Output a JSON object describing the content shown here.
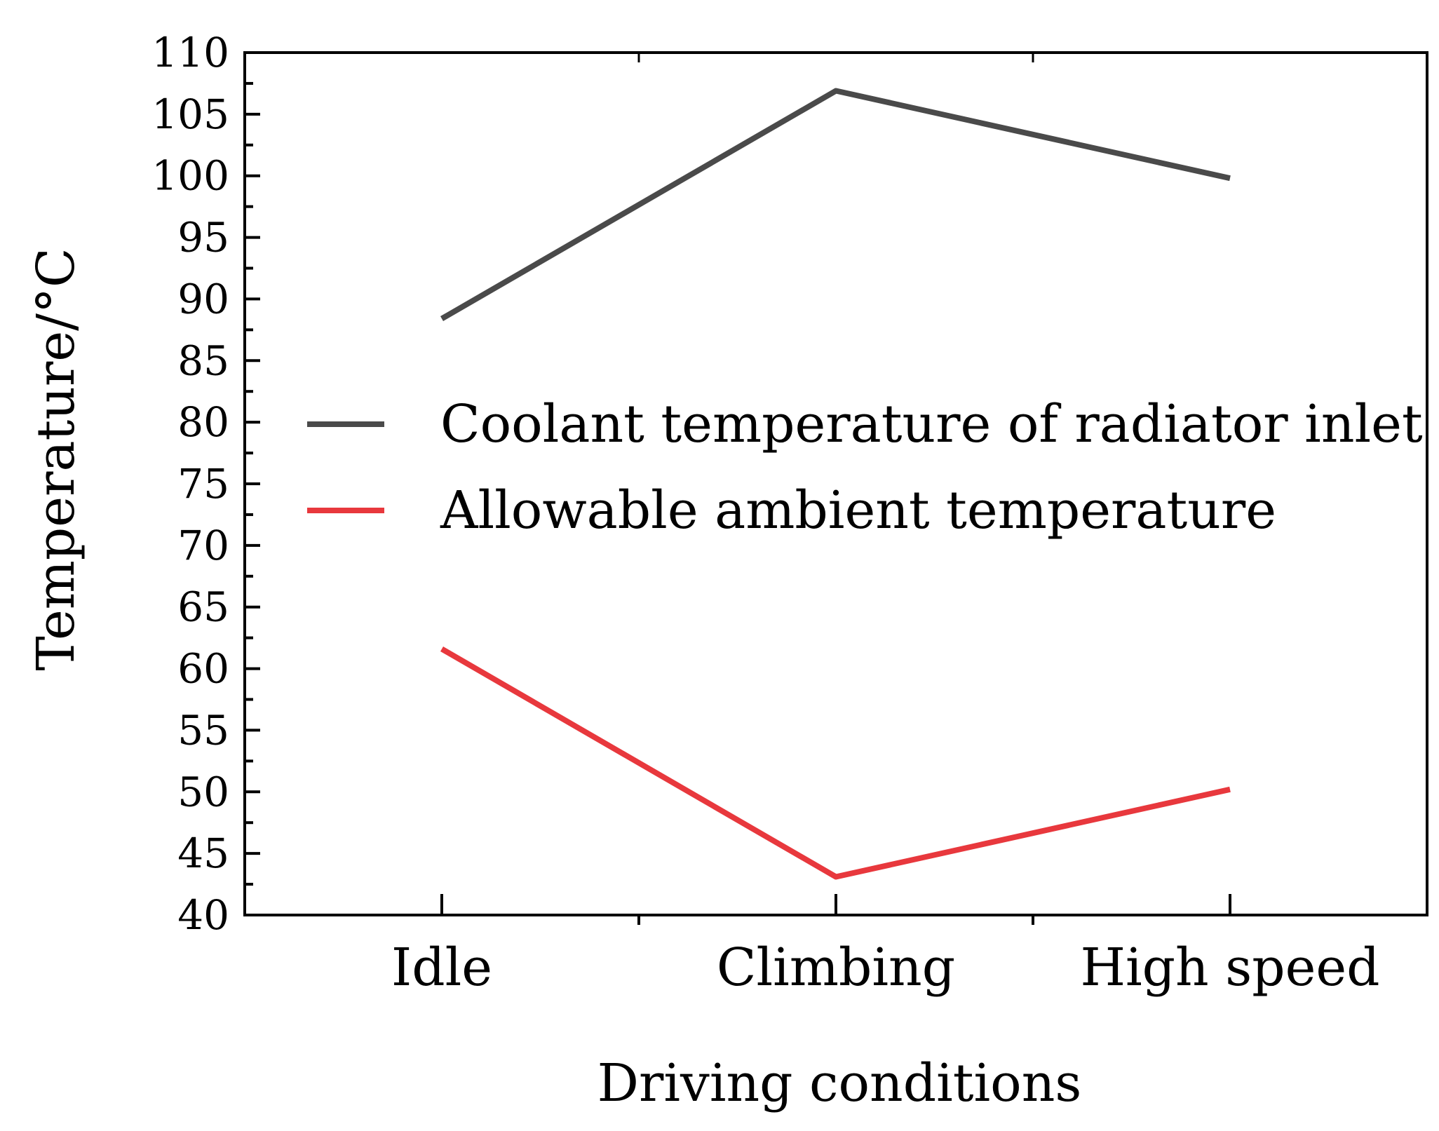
{
  "chart_data": {
    "type": "line",
    "title": "",
    "xlabel": "Driving conditions",
    "ylabel": "Temperature/°C",
    "categories": [
      "Idle",
      "Climbing",
      "High speed"
    ],
    "ylim": [
      40,
      110
    ],
    "yticks": [
      40,
      45,
      50,
      55,
      60,
      65,
      70,
      75,
      80,
      85,
      90,
      95,
      100,
      105,
      110
    ],
    "grid": false,
    "legend_position": "center-right",
    "series": [
      {
        "name": "Coolant temperature of radiator inlet",
        "values": [
          88.4,
          106.9,
          99.8
        ],
        "color": "#4a4a4a"
      },
      {
        "name": "Allowable ambient temperature",
        "values": [
          61.6,
          43.1,
          50.2
        ],
        "color": "#e8383d"
      }
    ]
  }
}
